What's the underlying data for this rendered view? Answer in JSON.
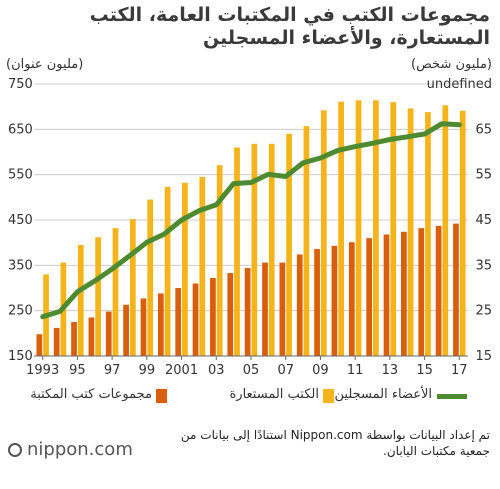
{
  "title": "مجموعات الكتب في المكتبات العامة، الكتب المستعارة، والأعضاء المسجلين",
  "left_unit": "(مليون عنوان)",
  "right_unit": "(مليون شخص)",
  "source": "تم إعداد البيانات بواسطة Nippon.com استنادًا إلى بيانات من جمعية مكتبات اليابان.",
  "logo": "nippon.com",
  "colors": {
    "collections": "#d95f0e",
    "loans": "#f4b41a",
    "members": "#4e8a2f",
    "grid": "#cccccc"
  },
  "chart_data": {
    "type": "bar",
    "x": [
      1993,
      1994,
      1995,
      1996,
      1997,
      1998,
      1999,
      2000,
      2001,
      2002,
      2003,
      2004,
      2005,
      2006,
      2007,
      2008,
      2009,
      2010,
      2011,
      2012,
      2013,
      2014,
      2015,
      2016,
      2017
    ],
    "x_tick_labels": [
      "1993",
      "95",
      "97",
      "99",
      "2001",
      "03",
      "05",
      "07",
      "09",
      "11",
      "13",
      "15",
      "17"
    ],
    "x_tick_years": [
      1993,
      1995,
      1997,
      1999,
      2001,
      2003,
      2005,
      2007,
      2009,
      2011,
      2013,
      2015,
      2017
    ],
    "left_axis": {
      "ylim": [
        150,
        750
      ],
      "ticks": [
        150,
        250,
        350,
        450,
        550,
        650,
        750
      ]
    },
    "right_axis": {
      "ylim": [
        15,
        65
      ],
      "ticks": [
        15,
        25,
        35,
        45,
        55,
        65
      ]
    },
    "series": [
      {
        "name": "مجموعات كتب المكتبة",
        "type": "bar",
        "axis": "left",
        "values": [
          198,
          212,
          225,
          235,
          248,
          263,
          277,
          288,
          300,
          310,
          322,
          333,
          344,
          356,
          356,
          374,
          386,
          393,
          401,
          410,
          418,
          424,
          432,
          437,
          442
        ]
      },
      {
        "name": "الكتب المستعارة",
        "type": "bar",
        "axis": "left",
        "values": [
          330,
          356,
          395,
          412,
          432,
          452,
          495,
          523,
          532,
          545,
          571,
          610,
          618,
          618,
          640,
          657,
          692,
          711,
          714,
          714,
          710,
          696,
          688,
          703,
          691
        ]
      },
      {
        "name": "الأعضاء المسجلين",
        "type": "line",
        "axis": "right",
        "values": [
          22.2,
          23.2,
          26.8,
          28.8,
          31.0,
          33.4,
          35.9,
          37.4,
          40.0,
          41.7,
          42.8,
          46.7,
          46.9,
          48.4,
          48.0,
          50.5,
          51.4,
          52.8,
          53.5,
          54.1,
          54.8,
          55.3,
          55.8,
          57.7,
          57.5
        ]
      }
    ]
  }
}
